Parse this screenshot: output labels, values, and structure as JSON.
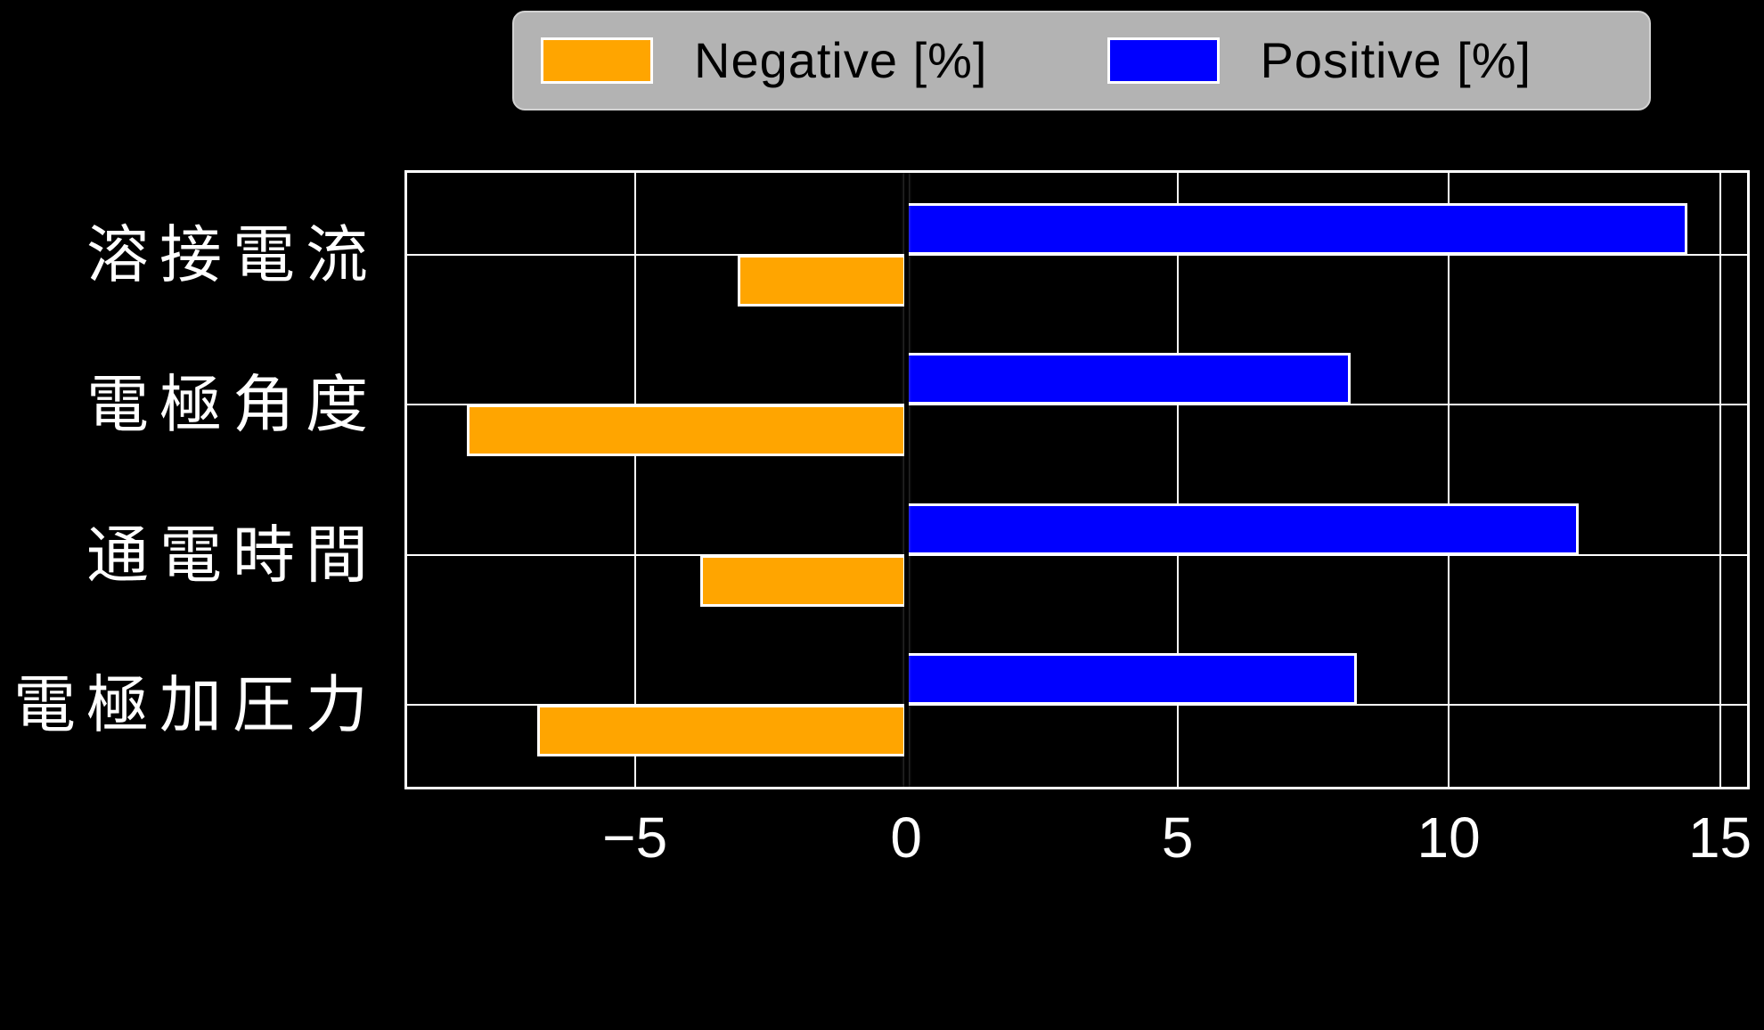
{
  "chart_data": {
    "type": "bar",
    "orientation": "horizontal",
    "title": "",
    "xlabel": "",
    "ylabel": "",
    "categories": [
      "溶接電流",
      "電極角度",
      "通電時間",
      "電極加圧力"
    ],
    "series": [
      {
        "name": "Negative [%]",
        "color": "#FFA500",
        "values": [
          -3.1,
          -8.1,
          -3.8,
          -6.8
        ]
      },
      {
        "name": "Positive [%]",
        "color": "#0000FF",
        "values": [
          14.4,
          8.2,
          12.4,
          8.3
        ]
      }
    ],
    "xticks": [
      -5,
      0,
      5,
      10,
      15
    ],
    "xtick_labels": [
      "−5",
      "0",
      "5",
      "10",
      "15"
    ],
    "xlim": [
      -9.2,
      15.5
    ],
    "grid": true,
    "zero_line": true,
    "legend_position": "top-center-outside",
    "colors": {
      "background": "#000000",
      "text": "#ffffff",
      "grid": "#ffffff",
      "bar_edge": "#ffffff",
      "zero_line": "#000000",
      "legend_background": "#b3b3b3",
      "legend_text": "#000000"
    }
  }
}
